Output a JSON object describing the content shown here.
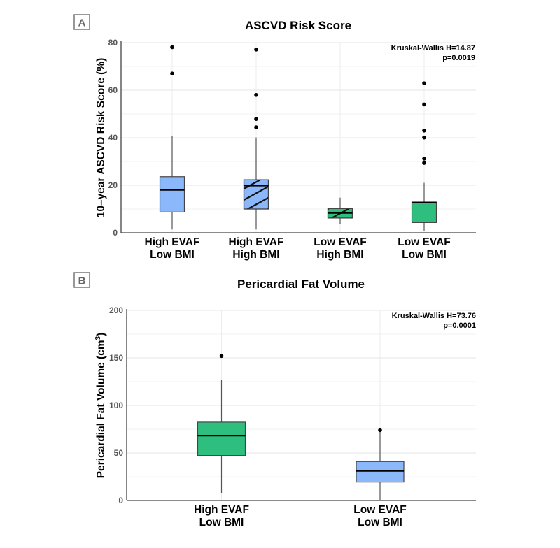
{
  "chart_data": [
    {
      "type": "box",
      "panel_label": "A",
      "title": "ASCVD Risk Score",
      "xlabel": "",
      "ylabel": "10–year ASCVD Risk Score (%)",
      "ylim": [
        0,
        80
      ],
      "yticks": [
        0,
        20,
        40,
        60,
        80
      ],
      "grid": true,
      "annotation": [
        "Kruskal-Wallis H=14.87",
        "p=0.0019"
      ],
      "annotation_position": "top-right",
      "categories": [
        {
          "line1": "High EVAF",
          "line2": "Low BMI"
        },
        {
          "line1": "High EVAF",
          "line2": "High BMI"
        },
        {
          "line1": "Low EVAF",
          "line2": "High BMI"
        },
        {
          "line1": "Low EVAF",
          "line2": "Low BMI"
        }
      ],
      "boxes": [
        {
          "fill": "#8ab8fb",
          "hatched": false,
          "whisker_low": 1.4,
          "q1": 8.7,
          "median": 18.0,
          "q3": 23.6,
          "whisker_high": 40.9,
          "outliers": [
            67.0,
            78.1
          ]
        },
        {
          "fill": "#8ab8fb",
          "hatched": true,
          "whisker_low": 1.4,
          "q1": 10.0,
          "median": 19.8,
          "q3": 22.3,
          "whisker_high": 40.1,
          "outliers": [
            44.4,
            47.9,
            58.0,
            77.1
          ]
        },
        {
          "fill": "#2ebf7e",
          "hatched": true,
          "whisker_low": 3.8,
          "q1": 6.2,
          "median": 8.3,
          "q3": 10.2,
          "whisker_high": 14.8,
          "outliers": []
        },
        {
          "fill": "#2ebf7e",
          "hatched": false,
          "whisker_low": 0.9,
          "q1": 4.3,
          "median": 12.8,
          "q3": 12.9,
          "whisker_high": 21.0,
          "outliers": [
            29.4,
            31.2,
            40.1,
            43.0,
            54.0,
            62.9
          ]
        }
      ]
    },
    {
      "type": "box",
      "panel_label": "B",
      "title": "Pericardial Fat Volume",
      "xlabel": "",
      "ylabel": "Pericardial Fat Volume (cm",
      "ylabel_sup": "3",
      "ylabel_end": ")",
      "ylim": [
        0,
        200
      ],
      "yticks": [
        0,
        50,
        100,
        150,
        200
      ],
      "grid": true,
      "annotation": [
        "Kruskal-Wallis H=73.76",
        "p=0.0001"
      ],
      "annotation_position": "top-right",
      "categories": [
        {
          "line1": "High EVAF",
          "line2": "Low BMI"
        },
        {
          "line1": "Low EVAF",
          "line2": "Low BMI"
        }
      ],
      "boxes": [
        {
          "fill": "#2ebf7e",
          "hatched": false,
          "whisker_low": 8.1,
          "q1": 47.3,
          "median": 68.2,
          "q3": 82.4,
          "whisker_high": 127.0,
          "outliers": [
            152.0
          ]
        },
        {
          "fill": "#8ab8fb",
          "hatched": false,
          "whisker_low": 0.0,
          "q1": 19.4,
          "median": 31.1,
          "q3": 41.0,
          "whisker_high": 73.0,
          "outliers": [
            74.0
          ]
        }
      ]
    }
  ]
}
